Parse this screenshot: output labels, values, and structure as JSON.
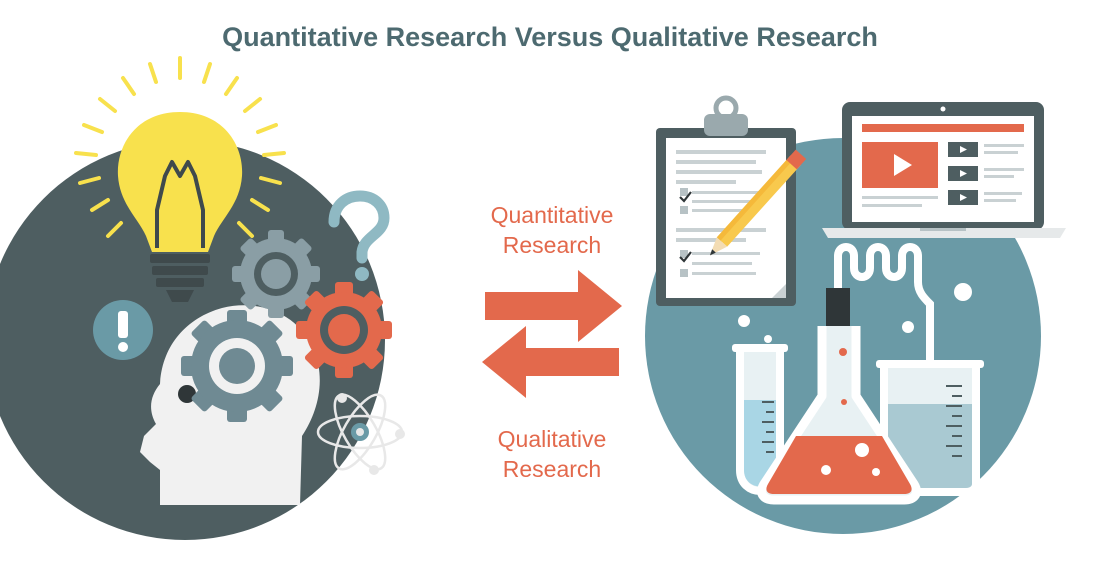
{
  "title": "Quantitative Research Versus Qualitative Research",
  "labels": {
    "quantitative_line1": "Quantitative",
    "quantitative_line2": "Research",
    "qualitative_line1": "Qualitative",
    "qualitative_line2": "Research"
  },
  "colors": {
    "title": "#4d6a70",
    "accent_orange": "#e3694c",
    "left_circle": "#4e5e61",
    "right_circle": "#6a9aa6",
    "bulb_yellow": "#f8e14d",
    "gear_gray": "#6f8a93",
    "head_white": "#f1f1f1"
  },
  "icons": [
    "lightbulb-icon",
    "gear-icon",
    "question-mark-icon",
    "exclamation-icon",
    "atom-icon",
    "clipboard-icon",
    "pencil-icon",
    "laptop-icon",
    "video-play-icon",
    "flask-icon",
    "test-tube-icon",
    "beaker-icon",
    "arrow-right-icon",
    "arrow-left-icon"
  ]
}
